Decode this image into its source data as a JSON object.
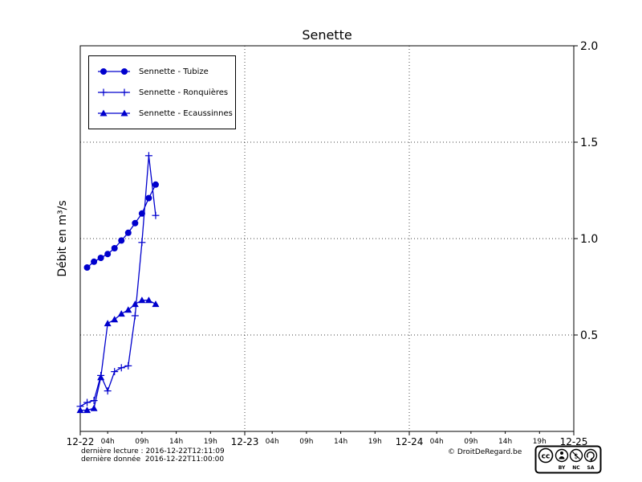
{
  "footer": {
    "last_read": "dernière lecture : 2016-12-22T12:11:09",
    "last_data": "dernière donnée  2016-12-22T11:00:00",
    "copyright": "© DroitDeRegard.be"
  },
  "license_badge": {
    "logo": "CC",
    "terms": [
      "BY",
      "NC",
      "SA"
    ]
  },
  "chart_data": {
    "type": "line",
    "title": "Senette",
    "ylabel": "Débit en m³/s",
    "xlabel": "",
    "x_unit": "hours from 2016-12-22 00:00",
    "x_range_hours": [
      0,
      72
    ],
    "ylim": [
      0,
      2.0
    ],
    "grid": {
      "h_values": [
        0.5,
        1.0,
        1.5
      ],
      "v_hours": [
        24,
        48
      ]
    },
    "legend_position": "upper-left",
    "series_color": "#0000cd",
    "day_ticks": [
      {
        "t": 0,
        "label": "12-22"
      },
      {
        "t": 24,
        "label": "12-23"
      },
      {
        "t": 48,
        "label": "12-24"
      },
      {
        "t": 72,
        "label": "12-25"
      }
    ],
    "hour_ticks_offsets": [
      4,
      9,
      14,
      19
    ],
    "hour_tick_labels": [
      "04h",
      "09h",
      "14h",
      "19h"
    ],
    "yticks": [
      {
        "v": 0.5,
        "label": "0.5"
      },
      {
        "v": 1.0,
        "label": "1.0"
      },
      {
        "v": 1.5,
        "label": "1.5"
      },
      {
        "v": 2.0,
        "label": "2.0"
      }
    ],
    "series": [
      {
        "name": "Sennette - Tubize",
        "marker": "circle",
        "points": [
          [
            1,
            0.85
          ],
          [
            2,
            0.88
          ],
          [
            3,
            0.9
          ],
          [
            4,
            0.92
          ],
          [
            5,
            0.95
          ],
          [
            6,
            0.99
          ],
          [
            7,
            1.03
          ],
          [
            8,
            1.08
          ],
          [
            9,
            1.13
          ],
          [
            10,
            1.21
          ],
          [
            11,
            1.28
          ]
        ]
      },
      {
        "name": "Sennette - Ronquières",
        "marker": "plus",
        "points": [
          [
            0,
            0.13
          ],
          [
            1,
            0.15
          ],
          [
            2,
            0.16
          ],
          [
            3,
            0.29
          ],
          [
            4,
            0.21
          ],
          [
            5,
            0.31
          ],
          [
            6,
            0.33
          ],
          [
            7,
            0.34
          ],
          [
            8,
            0.6
          ],
          [
            9,
            0.98
          ],
          [
            10,
            1.43
          ],
          [
            11,
            1.12
          ]
        ]
      },
      {
        "name": "Sennette - Ecaussinnes",
        "marker": "triangle",
        "points": [
          [
            0,
            0.11
          ],
          [
            1,
            0.11
          ],
          [
            2,
            0.12
          ],
          [
            3,
            0.28
          ],
          [
            4,
            0.56
          ],
          [
            5,
            0.58
          ],
          [
            6,
            0.61
          ],
          [
            7,
            0.63
          ],
          [
            8,
            0.66
          ],
          [
            9,
            0.68
          ],
          [
            10,
            0.68
          ],
          [
            11,
            0.66
          ]
        ]
      }
    ]
  }
}
